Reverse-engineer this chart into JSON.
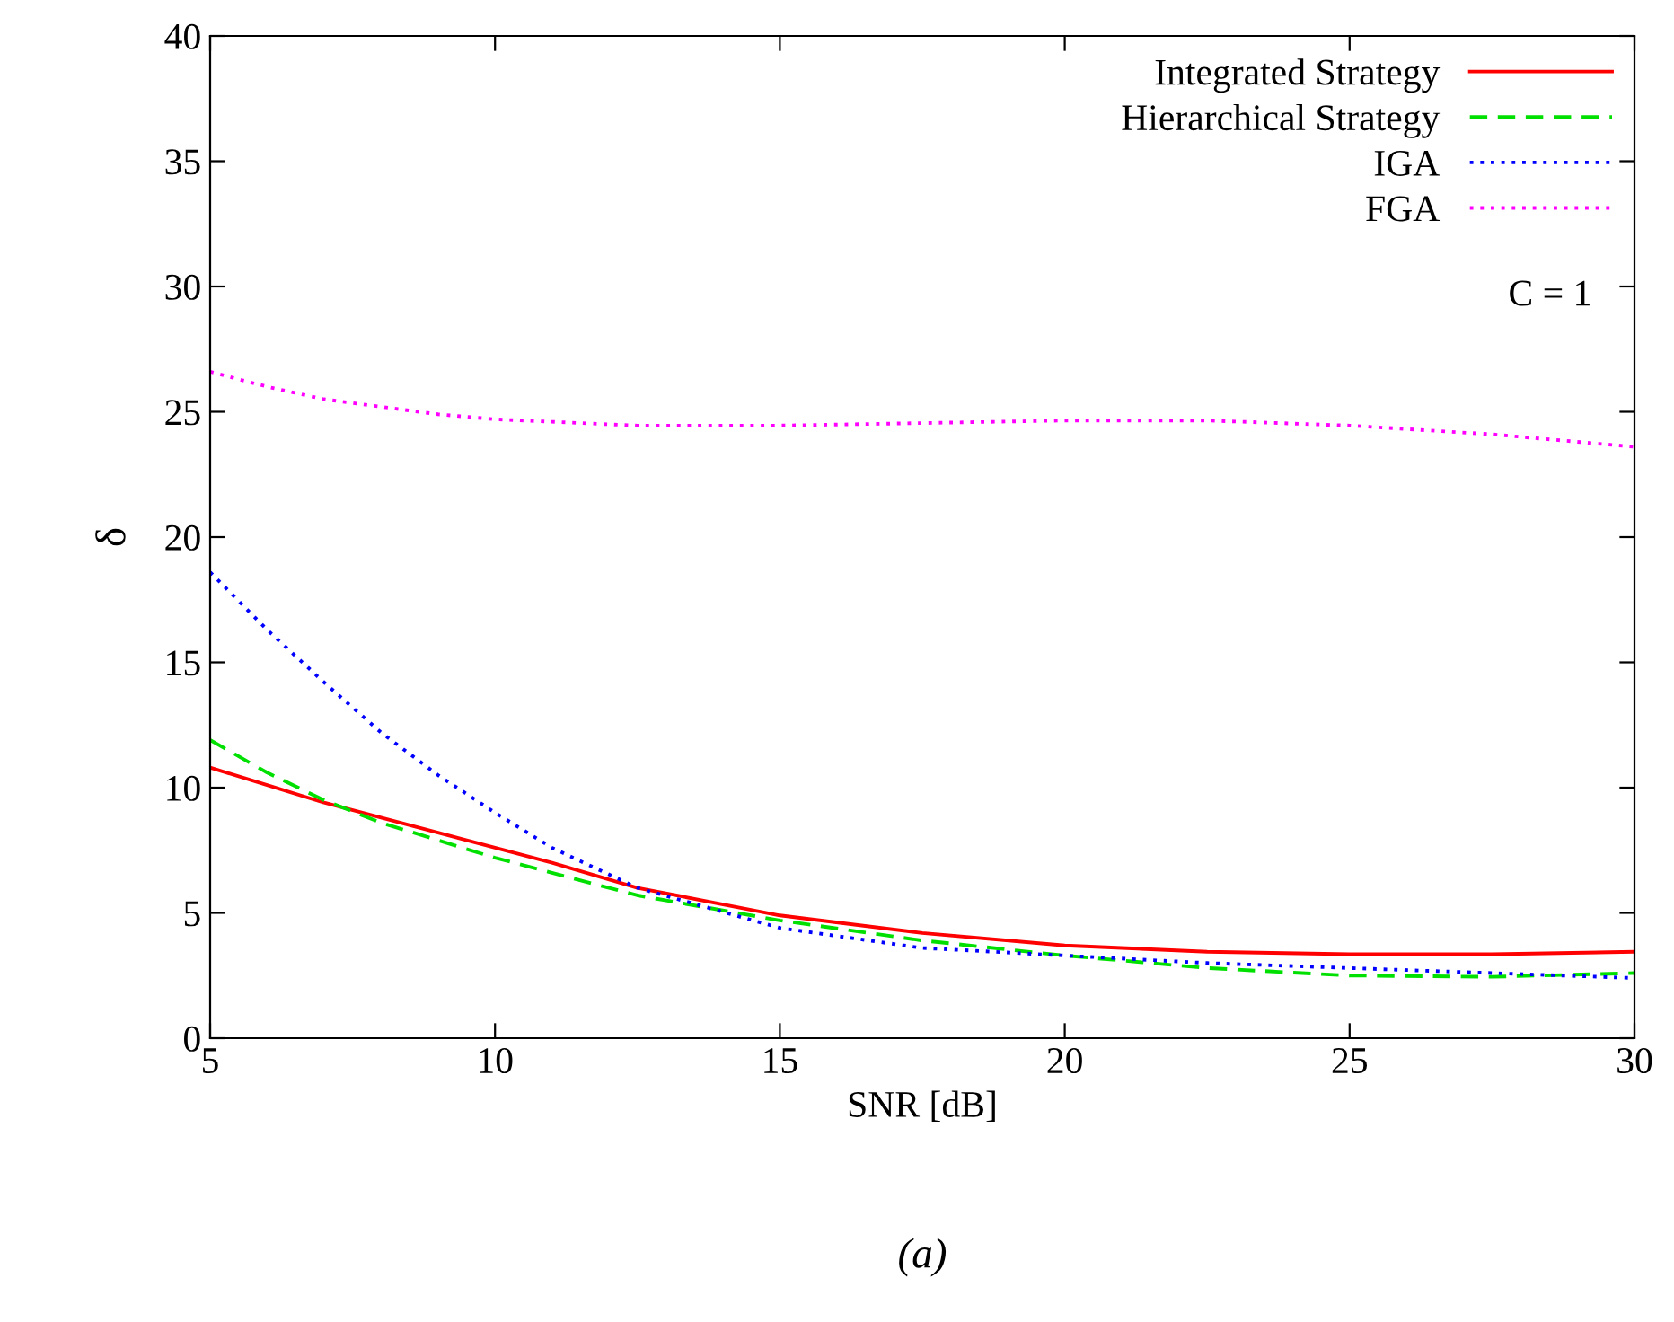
{
  "chart_data": {
    "type": "line",
    "xlabel": "SNR [dB]",
    "ylabel": "δ",
    "xlim": [
      5,
      30
    ],
    "ylim": [
      0,
      40
    ],
    "xticks": [
      5,
      10,
      15,
      20,
      25,
      30
    ],
    "yticks": [
      0,
      5,
      10,
      15,
      20,
      25,
      30,
      35,
      40
    ],
    "grid": false,
    "legend": "top right",
    "marker": "none",
    "x": [
      5,
      6,
      7,
      8,
      9,
      10,
      11,
      12.5,
      15,
      17.5,
      20,
      22.5,
      25,
      27.5,
      30
    ],
    "series": [
      {
        "name": "Integrated Strategy",
        "color": "#ff0000",
        "line_style": "solid",
        "values": [
          10.8,
          10.1,
          9.4,
          8.8,
          8.2,
          7.6,
          7.0,
          6.0,
          4.9,
          4.2,
          3.7,
          3.45,
          3.35,
          3.35,
          3.45
        ]
      },
      {
        "name": "Hierarchical Strategy",
        "color": "#00e000",
        "line_style": "dashed",
        "values": [
          11.9,
          10.6,
          9.5,
          8.6,
          7.9,
          7.2,
          6.6,
          5.7,
          4.7,
          3.9,
          3.3,
          2.8,
          2.5,
          2.45,
          2.6
        ]
      },
      {
        "name": "IGA",
        "color": "#0000ff",
        "line_style": "dotted",
        "values": [
          18.6,
          16.3,
          14.2,
          12.2,
          10.5,
          9.0,
          7.6,
          6.0,
          4.4,
          3.6,
          3.3,
          3.0,
          2.8,
          2.6,
          2.4
        ]
      },
      {
        "name": "FGA",
        "color": "#ff00ff",
        "line_style": "dotted",
        "values": [
          26.6,
          26.0,
          25.5,
          25.2,
          24.9,
          24.7,
          24.6,
          24.45,
          24.45,
          24.55,
          24.65,
          24.65,
          24.45,
          24.1,
          23.6
        ]
      }
    ],
    "annotations": [
      "C = 1",
      "(a)"
    ]
  }
}
